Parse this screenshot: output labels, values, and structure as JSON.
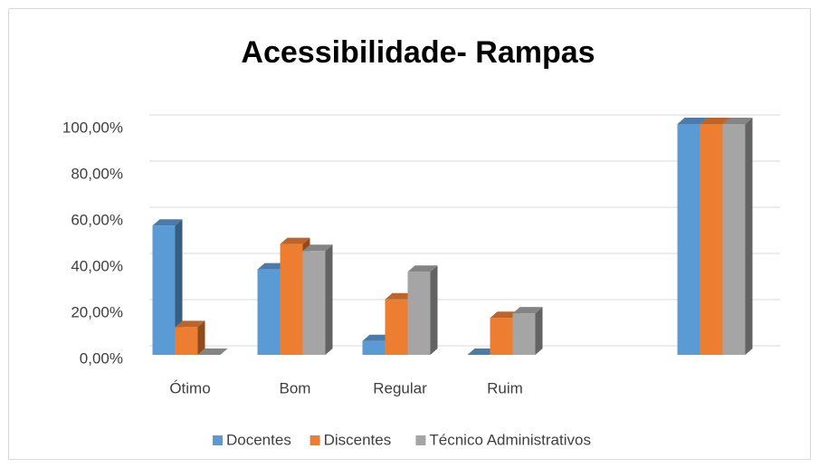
{
  "chart_data": {
    "type": "bar3d",
    "title": "Acessibilidade- Rampas",
    "categories": [
      "Ótimo",
      "Bom",
      "Regular",
      "Ruim",
      null,
      null
    ],
    "series": [
      {
        "name": "Docentes",
        "color": "#5b9bd5",
        "values": [
          56,
          37,
          6,
          0,
          null,
          100
        ]
      },
      {
        "name": "Discentes",
        "color": "#ed7d31",
        "values": [
          12,
          48,
          24,
          16,
          null,
          100
        ]
      },
      {
        "name": "Técnico Administrativos",
        "color": "#a5a5a5",
        "values": [
          0,
          45,
          36,
          18,
          null,
          100
        ]
      }
    ],
    "ylim": [
      0,
      100
    ],
    "yticks": [
      {
        "value": 0,
        "label": "0,00%"
      },
      {
        "value": 20,
        "label": "20,00%"
      },
      {
        "value": 40,
        "label": "40,00%"
      },
      {
        "value": 60,
        "label": "60,00%"
      },
      {
        "value": 80,
        "label": "80,00%"
      },
      {
        "value": 100,
        "label": "100,00%"
      }
    ],
    "grid": true,
    "legend": "bottom"
  }
}
